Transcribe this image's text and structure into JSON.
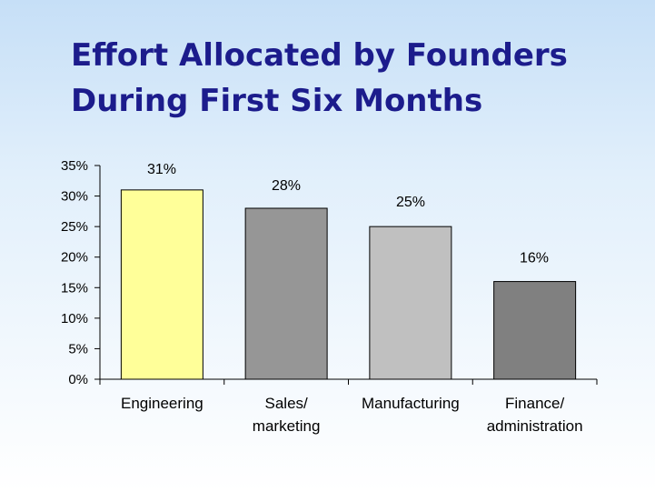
{
  "slide": {
    "title_line1": "Effort Allocated by Founders",
    "title_line2": "During First Six Months"
  },
  "chart_data": {
    "type": "bar",
    "title": "Effort Allocated by Founders During First Six Months",
    "categories": [
      [
        "Engineering"
      ],
      [
        "Sales/",
        "marketing"
      ],
      [
        "Manufacturing"
      ],
      [
        "Finance/",
        "administration"
      ]
    ],
    "values": [
      31,
      28,
      25,
      16
    ],
    "data_labels": [
      "31%",
      "28%",
      "25%",
      "16%"
    ],
    "bar_colors": [
      "#ffff99",
      "#969696",
      "#c0c0c0",
      "#808080"
    ],
    "ylim": [
      0,
      35
    ],
    "yticks": [
      0,
      5,
      10,
      15,
      20,
      25,
      30,
      35
    ],
    "ytick_labels": [
      "0%",
      "5%",
      "10%",
      "15%",
      "20%",
      "25%",
      "30%",
      "35%"
    ],
    "xlabel": "",
    "ylabel": "",
    "grid": false,
    "legend": "none"
  }
}
